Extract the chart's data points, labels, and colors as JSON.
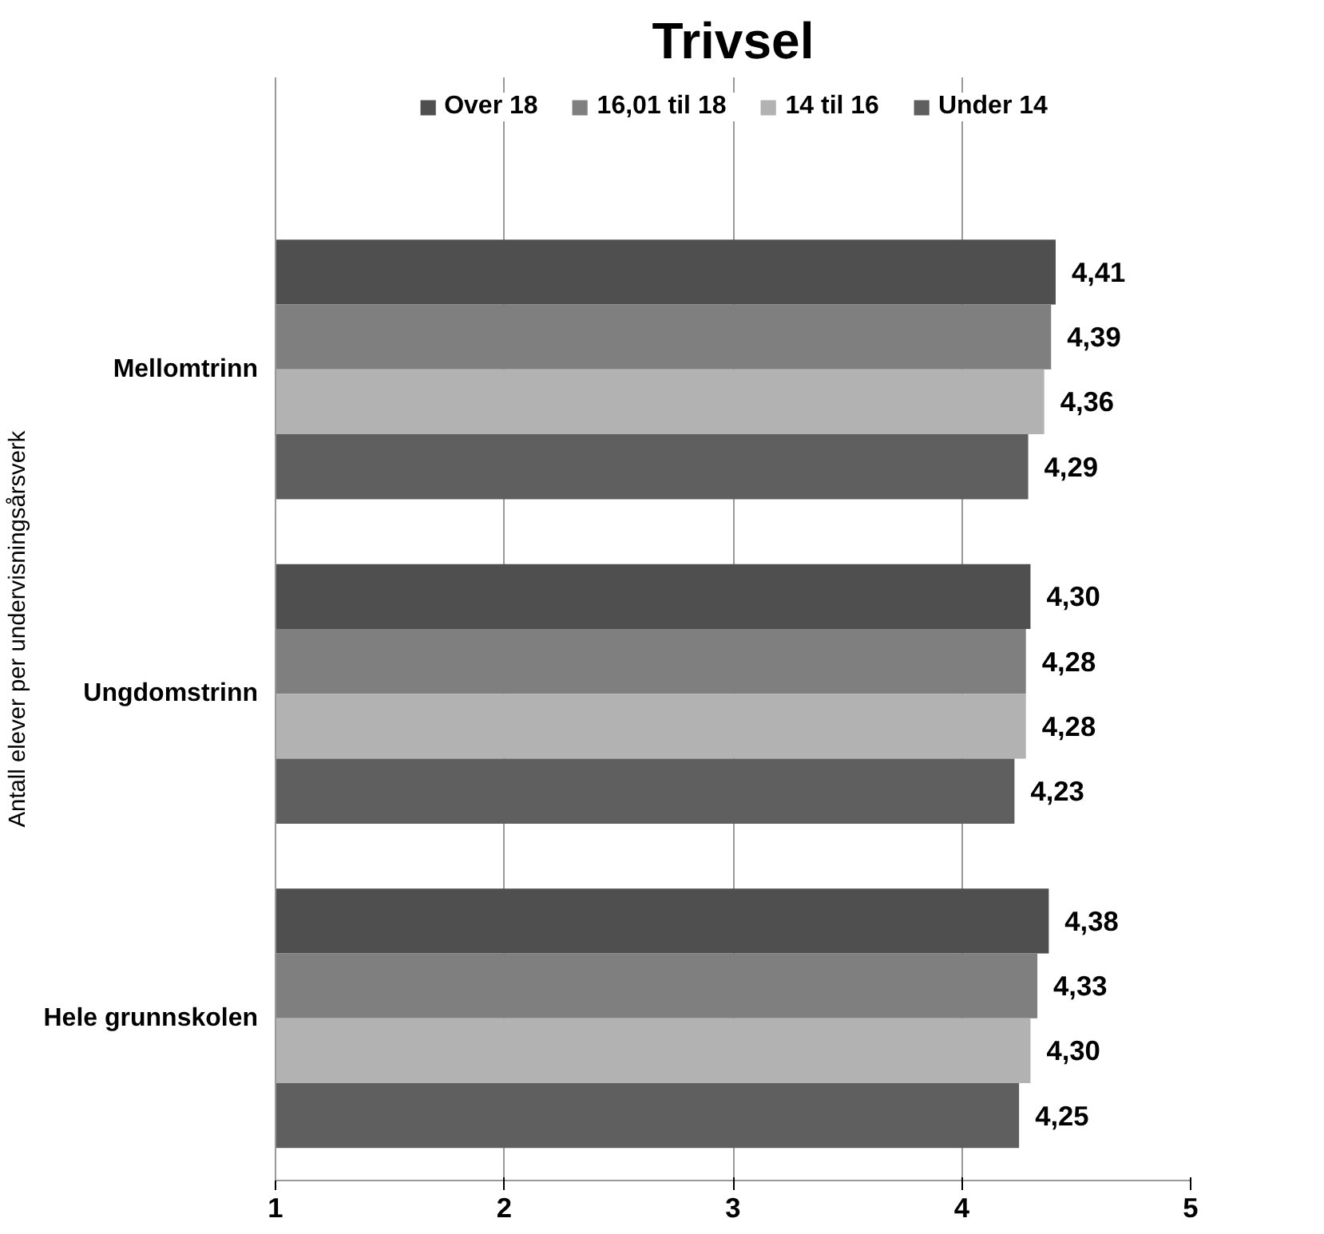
{
  "chart_data": {
    "type": "bar",
    "orientation": "horizontal",
    "title": "Trivsel",
    "ylabel": "Antall elever per undervisningsårsverk",
    "categories": [
      "Mellomtrinn",
      "Ungdomstrinn",
      "Hele grunnskolen"
    ],
    "series": [
      {
        "name": "Over 18",
        "color": "#4f4f4f",
        "values": [
          4.41,
          4.3,
          4.38
        ],
        "value_labels": [
          "4,41",
          "4,30",
          "4,38"
        ]
      },
      {
        "name": "16,01 til 18",
        "color": "#7f7f7f",
        "values": [
          4.39,
          4.28,
          4.33
        ],
        "value_labels": [
          "4,39",
          "4,28",
          "4,33"
        ]
      },
      {
        "name": "14 til 16",
        "color": "#b2b2b2",
        "values": [
          4.36,
          4.28,
          4.3
        ],
        "value_labels": [
          "4,36",
          "4,28",
          "4,30"
        ]
      },
      {
        "name": "Under 14",
        "color": "#5f5f5f",
        "values": [
          4.29,
          4.23,
          4.25
        ],
        "value_labels": [
          "4,29",
          "4,23",
          "4,25"
        ]
      }
    ],
    "xlim": [
      1,
      5
    ],
    "xticks": [
      1,
      2,
      3,
      4,
      5
    ],
    "grid": "x",
    "legend": "top"
  }
}
